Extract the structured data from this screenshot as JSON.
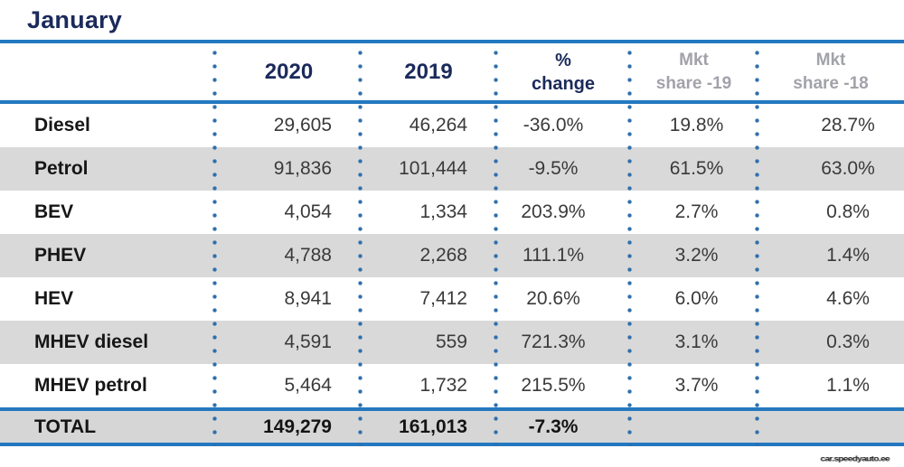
{
  "chart_data": {
    "type": "table",
    "title": "January",
    "columns": [
      {
        "line1": "",
        "line2": ""
      },
      {
        "line1": "2020",
        "line2": ""
      },
      {
        "line1": "2019",
        "line2": ""
      },
      {
        "line1": "%",
        "line2": "change"
      },
      {
        "line1": "Mkt",
        "line2": "share -19"
      },
      {
        "line1": "Mkt",
        "line2": "share -18"
      }
    ],
    "rows": [
      [
        "Diesel",
        "29,605",
        "46,264",
        "-36.0%",
        "19.8%",
        "28.7%"
      ],
      [
        "Petrol",
        "91,836",
        "101,444",
        "-9.5%",
        "61.5%",
        "63.0%"
      ],
      [
        "BEV",
        "4,054",
        "1,334",
        "203.9%",
        "2.7%",
        "0.8%"
      ],
      [
        "PHEV",
        "4,788",
        "2,268",
        "111.1%",
        "3.2%",
        "1.4%"
      ],
      [
        "HEV",
        "8,941",
        "7,412",
        "20.6%",
        "6.0%",
        "4.6%"
      ],
      [
        "MHEV diesel",
        "4,591",
        "559",
        "721.3%",
        "3.1%",
        "0.3%"
      ],
      [
        "MHEV petrol",
        "5,464",
        "1,732",
        "215.5%",
        "3.7%",
        "1.1%"
      ]
    ],
    "total": [
      "TOTAL",
      "149,279",
      "161,013",
      "-7.3%",
      "",
      ""
    ]
  },
  "watermark": "car.speedyauto.ee",
  "colors": {
    "navy_text": "#1b2a5b",
    "accent_blue_lines": "#2478c0",
    "dot_blue": "#2e6fad",
    "zebra_gray": "#d9d9d9",
    "muted_header_gray": "#a2a2aa",
    "value_text": "#3a3a3a"
  }
}
